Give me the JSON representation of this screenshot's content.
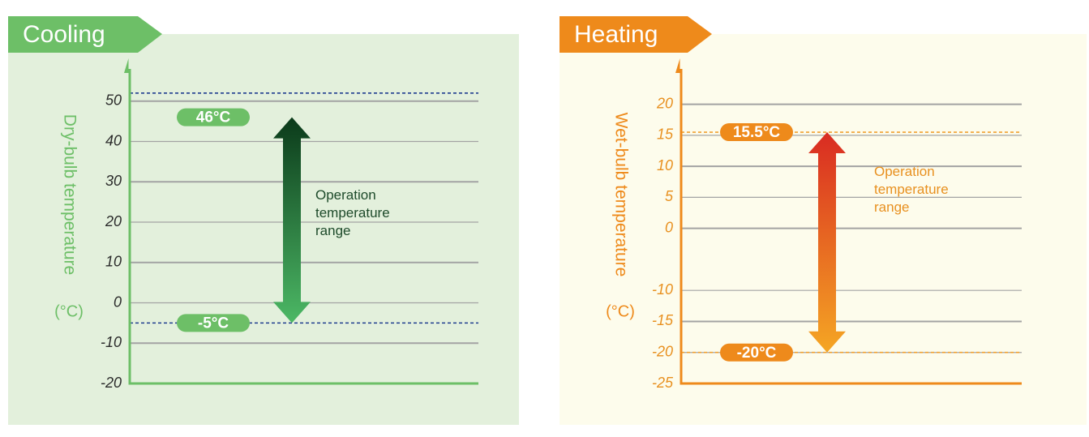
{
  "chart_data": [
    {
      "type": "range",
      "title": "Cooling",
      "ylabel": "Dry-bulb temperature",
      "unit": "(°C)",
      "ylim": [
        -20,
        59
      ],
      "yticks": [
        50,
        40,
        30,
        20,
        10,
        0,
        -10,
        -20
      ],
      "reference_lines": [
        52,
        -5
      ],
      "values": [
        46,
        -5
      ],
      "value_labels": [
        "46°C",
        "-5°C"
      ],
      "annotation": "Operation temperature range",
      "color": "#6dbf67",
      "panel_color": "#e3f0dc",
      "line_color": "#1f3d8f",
      "tick_color": "#2b2b2b",
      "annotation_color": "#1d4a2a",
      "arrow_colors": [
        "#0b3a1a",
        "#4cb865"
      ]
    },
    {
      "type": "range",
      "title": "Heating",
      "ylabel": "Wet-bulb temperature",
      "unit": "(°C)",
      "ylim": [
        -25,
        24
      ],
      "yticks": [
        20,
        15,
        10,
        5,
        0,
        -10,
        -15,
        -20,
        -25
      ],
      "reference_lines": [
        15.5,
        -20
      ],
      "values": [
        15.5,
        -20
      ],
      "value_labels": [
        "15.5°C",
        "-20°C"
      ],
      "annotation": "Operation temperature range",
      "color": "#ee8a1b",
      "panel_color": "#fdfcec",
      "line_color": "#f0a030",
      "tick_color": "#e8901f",
      "annotation_color": "#e8901f",
      "arrow_colors": [
        "#d92b22",
        "#f5a623"
      ]
    }
  ]
}
